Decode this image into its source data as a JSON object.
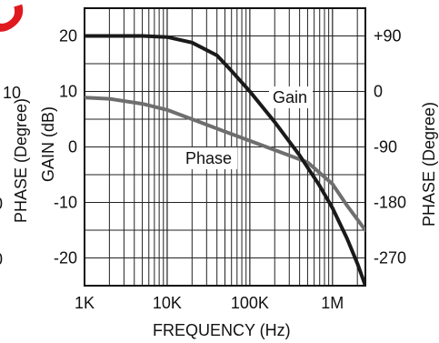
{
  "chart_data": {
    "type": "line",
    "title": "",
    "xlabel": "FREQUENCY (Hz)",
    "ylabel_left": "GAIN (dB)",
    "ylabel_right": "PHASE (Degree)",
    "x_scale": "log",
    "xlim": [
      1000,
      2500000
    ],
    "ylim_left": [
      -25,
      25
    ],
    "ylim_right": [
      -315,
      135
    ],
    "grid": true,
    "x_ticks": [
      {
        "value": 1000,
        "label": "1K"
      },
      {
        "value": 10000,
        "label": "10K"
      },
      {
        "value": 100000,
        "label": "100K"
      },
      {
        "value": 1000000,
        "label": "1M"
      }
    ],
    "y_ticks_left": [
      {
        "value": 20,
        "label": "20"
      },
      {
        "value": 10,
        "label": "10"
      },
      {
        "value": 0,
        "label": "0"
      },
      {
        "value": -10,
        "label": "-10"
      },
      {
        "value": -20,
        "label": "-20"
      }
    ],
    "y_ticks_right": [
      {
        "value": 90,
        "label": "+90"
      },
      {
        "value": 0,
        "label": "0"
      },
      {
        "value": -90,
        "label": "-90"
      },
      {
        "value": -180,
        "label": "-180"
      },
      {
        "value": -270,
        "label": "-270"
      }
    ],
    "series": [
      {
        "name": "Gain",
        "axis": "left",
        "color": "#1a1a1a",
        "x": [
          1000,
          2000,
          5000,
          10000,
          20000,
          40000,
          60000,
          100000,
          200000,
          400000,
          700000,
          1000000,
          1500000,
          2000000,
          2500000
        ],
        "y": [
          20,
          20,
          20,
          19.8,
          18.8,
          16.5,
          13.7,
          10,
          4.5,
          -1.5,
          -7,
          -11,
          -16.5,
          -21,
          -25
        ]
      },
      {
        "name": "Phase",
        "axis": "right",
        "color": "#6e6e6e",
        "x": [
          1000,
          2000,
          5000,
          10000,
          20000,
          50000,
          100000,
          200000,
          500000,
          1000000,
          1500000,
          2500000
        ],
        "y": [
          -10,
          -12,
          -20,
          -30,
          -45,
          -65,
          -80,
          -95,
          -115,
          -150,
          -185,
          -225
        ]
      }
    ],
    "labels": {
      "gain": "Gain",
      "phase": "Phase"
    },
    "partial_left_labels": [
      "10",
      "0",
      "0",
      "PHASE (Degree)"
    ]
  },
  "watermark": "COMPLE",
  "colors": {
    "watermark": "#e0191f",
    "gain": "#1a1a1a",
    "phase": "#6e6e6e",
    "grid": "#222222"
  }
}
